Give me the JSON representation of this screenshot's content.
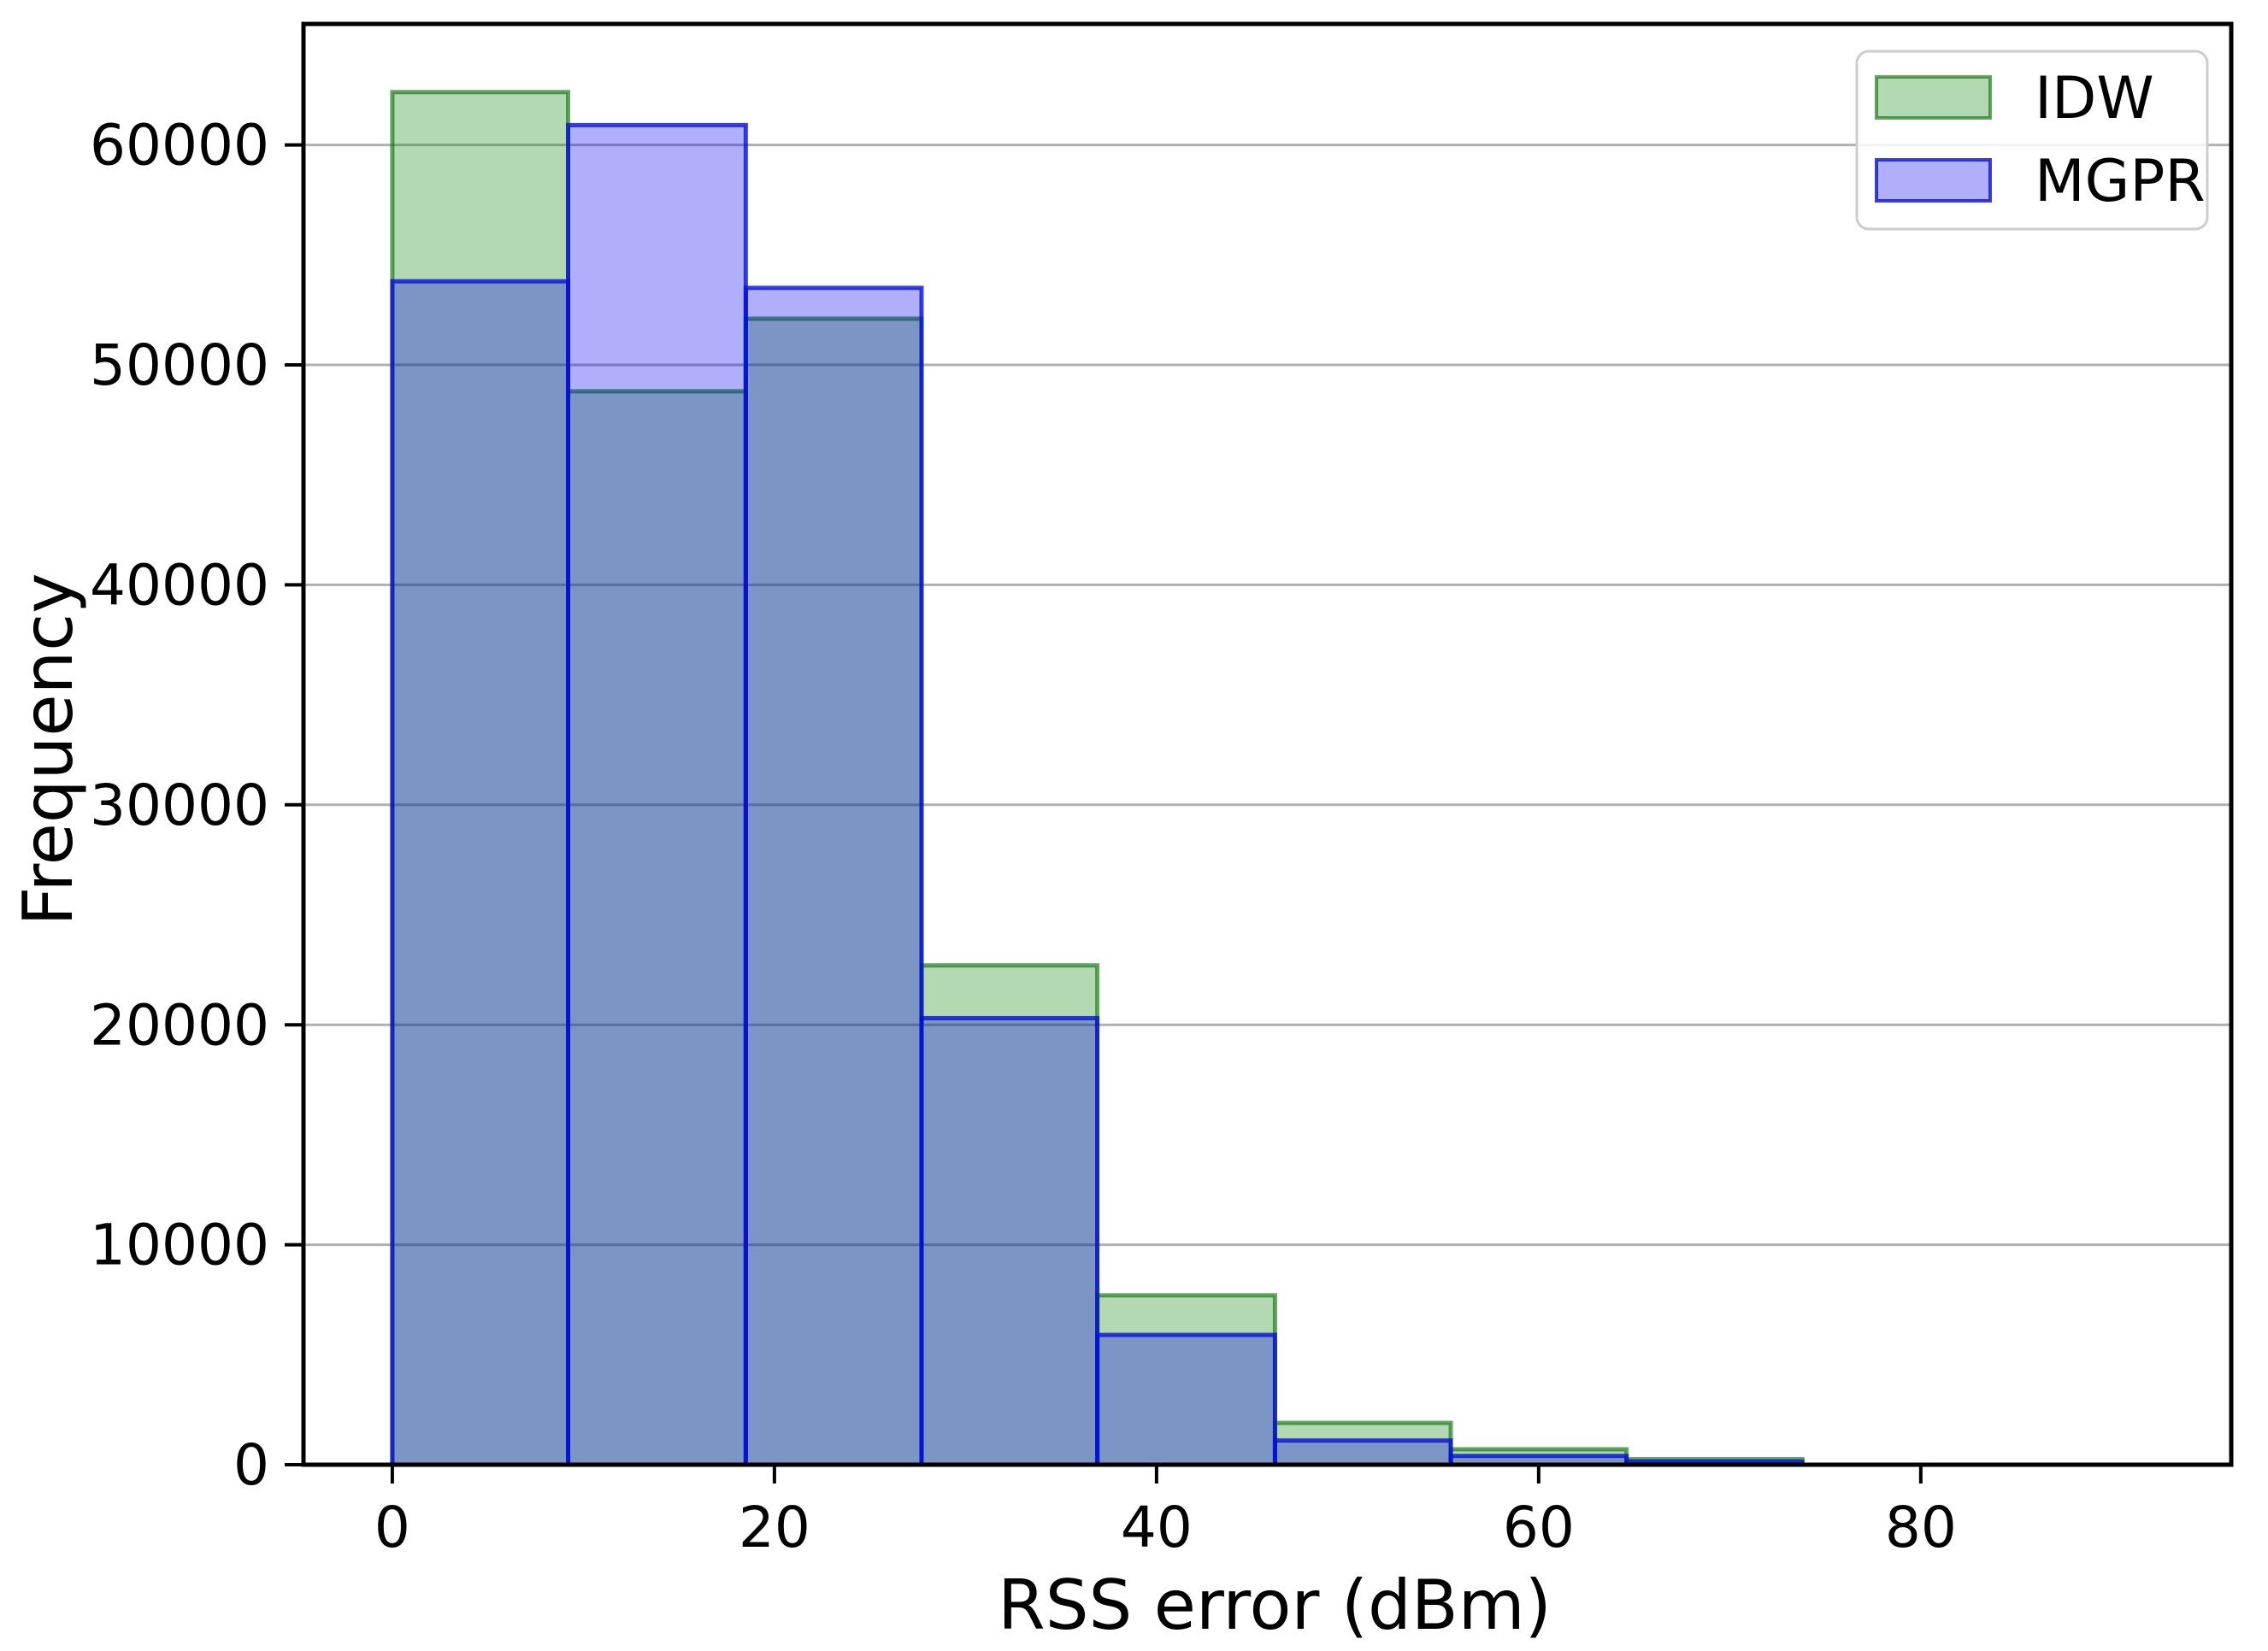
{
  "chart_data": {
    "type": "histogram",
    "title": "",
    "xlabel": "RSS error (dBm)",
    "ylabel": "Frequency",
    "x_ticks": [
      0,
      20,
      40,
      60,
      80
    ],
    "y_ticks": [
      0,
      10000,
      20000,
      30000,
      40000,
      50000,
      60000
    ],
    "xlim": [
      -4.65,
      96.25
    ],
    "ylim": [
      0,
      65500
    ],
    "grid": "horizontal",
    "legend_position": "upper right",
    "bin_edges": [
      0,
      9.2,
      18.5,
      27.7,
      36.9,
      46.2,
      55.4,
      64.6,
      73.8,
      83.1,
      92.3
    ],
    "series": [
      {
        "name": "IDW",
        "fill": "#B2D6B0",
        "edge": "#62A462",
        "fill_rgba": "rgba(0,128,0,0.30)",
        "edge_rgba": "rgba(0,110,0,0.62)",
        "values": [
          62400,
          48800,
          52100,
          22700,
          7700,
          1900,
          700,
          250,
          0,
          0
        ]
      },
      {
        "name": "MGPR",
        "fill": "#B0B0FC",
        "edge": "#3C44D8",
        "fill_rgba": "rgba(0,0,238,0.31)",
        "edge_rgba": "rgba(8,16,214,0.80)",
        "values": [
          53800,
          60900,
          53500,
          20300,
          5900,
          1100,
          400,
          150,
          0,
          0
        ]
      }
    ],
    "overlap_color": "#7A96C4",
    "colors": {
      "background": "#ffffff",
      "grid": "#b0b0b0",
      "spine": "#000000",
      "legend_border": "#cccccc",
      "legend_background": "#ffffff",
      "tick_label": "#000000"
    }
  }
}
